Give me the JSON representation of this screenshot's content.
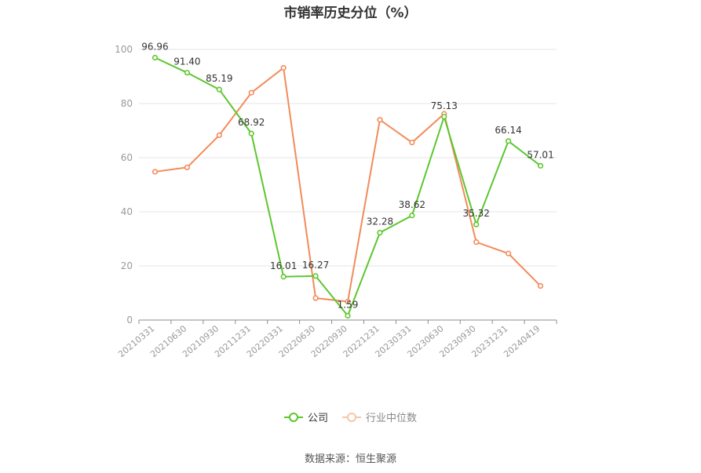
{
  "chart_data": {
    "type": "line",
    "title": "市销率历史分位（%）",
    "categories": [
      "20210331",
      "20210630",
      "20210930",
      "20211231",
      "20220331",
      "20220630",
      "20220930",
      "20221231",
      "20230331",
      "20230630",
      "20230930",
      "20231231",
      "20240419"
    ],
    "series": [
      {
        "name": "公司",
        "color": "#5cc72e",
        "values": [
          96.96,
          91.4,
          85.19,
          68.92,
          16.01,
          16.27,
          1.59,
          32.28,
          38.62,
          75.13,
          35.32,
          66.14,
          57.01
        ],
        "labels": [
          "96.96",
          "91.40",
          "85.19",
          "68.92",
          "16.01",
          "16.27",
          "1.59",
          "32.28",
          "38.62",
          "75.13",
          "35.32",
          "66.14",
          "57.01"
        ]
      },
      {
        "name": "行业中位数",
        "color": "#f28b5b",
        "values": [
          54.8,
          56.4,
          68.3,
          84.0,
          93.2,
          8.1,
          6.8,
          74.0,
          65.6,
          76.2,
          28.8,
          24.6,
          12.6
        ]
      }
    ],
    "ylim": [
      0,
      100
    ],
    "yticks": [
      0,
      20,
      40,
      60,
      80,
      100
    ],
    "xlabel": "",
    "ylabel": "",
    "grid": true,
    "legend_position": "bottom-center"
  },
  "source": "数据来源：恒生聚源"
}
